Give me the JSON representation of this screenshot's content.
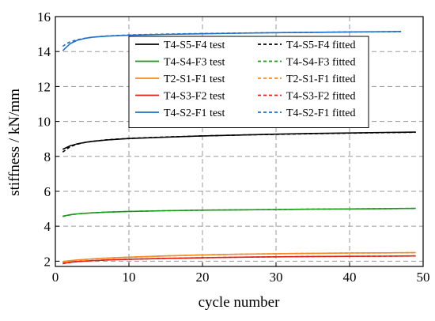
{
  "chart_data": {
    "type": "line",
    "title": "",
    "xlabel": "cycle number",
    "ylabel": "stiffness / kN/mm",
    "xlim": [
      0,
      50
    ],
    "ylim": [
      1.7,
      16
    ],
    "xticks": [
      0,
      10,
      20,
      30,
      40,
      50
    ],
    "yticks": [
      2,
      4,
      6,
      8,
      10,
      12,
      14,
      16
    ],
    "grid": true,
    "grid_style": "dashed",
    "legend_position": "top-right",
    "series": [
      {
        "name": "T4-S5-F4 test",
        "color": "#000000",
        "dash": "solid",
        "x": [
          1,
          2,
          3,
          4,
          5,
          7,
          10,
          15,
          20,
          25,
          30,
          35,
          40,
          45,
          49
        ],
        "y": [
          8.4,
          8.6,
          8.72,
          8.8,
          8.86,
          8.94,
          9.02,
          9.1,
          9.17,
          9.22,
          9.27,
          9.31,
          9.34,
          9.37,
          9.39
        ]
      },
      {
        "name": "T4-S5-F4 fitted",
        "color": "#000000",
        "dash": "dashed",
        "x": [
          1,
          2,
          3,
          4,
          5,
          7,
          10,
          15,
          20,
          25,
          30,
          35,
          40,
          45,
          49
        ],
        "y": [
          8.25,
          8.55,
          8.7,
          8.79,
          8.86,
          8.95,
          9.03,
          9.11,
          9.17,
          9.22,
          9.26,
          9.3,
          9.33,
          9.36,
          9.38
        ]
      },
      {
        "name": "T4-S4-F3 test",
        "color": "#1a9a1a",
        "dash": "solid",
        "x": [
          1,
          2,
          3,
          5,
          7,
          10,
          15,
          20,
          25,
          30,
          35,
          40,
          45,
          49
        ],
        "y": [
          4.58,
          4.66,
          4.71,
          4.77,
          4.81,
          4.85,
          4.89,
          4.92,
          4.94,
          4.96,
          4.98,
          4.99,
          5.01,
          5.02
        ]
      },
      {
        "name": "T4-S4-F3 fitted",
        "color": "#1a9a1a",
        "dash": "dashed",
        "x": [
          1,
          2,
          3,
          5,
          7,
          10,
          15,
          20,
          25,
          30,
          35,
          40,
          45,
          49
        ],
        "y": [
          4.56,
          4.65,
          4.71,
          4.77,
          4.81,
          4.85,
          4.89,
          4.92,
          4.94,
          4.96,
          4.98,
          4.99,
          5.01,
          5.02
        ]
      },
      {
        "name": "T2-S1-F1 test",
        "color": "#f58a1f",
        "dash": "solid",
        "x": [
          1,
          2,
          3,
          5,
          7,
          10,
          15,
          20,
          25,
          30,
          35,
          40,
          45,
          49
        ],
        "y": [
          1.98,
          2.03,
          2.07,
          2.13,
          2.18,
          2.23,
          2.3,
          2.36,
          2.4,
          2.43,
          2.45,
          2.47,
          2.48,
          2.49
        ]
      },
      {
        "name": "T2-S1-F1 fitted",
        "color": "#f58a1f",
        "dash": "dashed",
        "x": [
          1,
          2,
          3,
          5,
          7,
          10,
          15,
          20,
          25,
          30,
          35,
          40,
          45,
          49
        ],
        "y": [
          1.95,
          2.02,
          2.07,
          2.13,
          2.18,
          2.23,
          2.3,
          2.36,
          2.4,
          2.43,
          2.45,
          2.47,
          2.48,
          2.49
        ]
      },
      {
        "name": "T4-S3-F2 test",
        "color": "#e0201b",
        "dash": "solid",
        "x": [
          1,
          2,
          3,
          5,
          7,
          10,
          15,
          20,
          25,
          30,
          35,
          40,
          45,
          49
        ],
        "y": [
          1.88,
          1.94,
          1.98,
          2.03,
          2.07,
          2.11,
          2.16,
          2.2,
          2.23,
          2.25,
          2.27,
          2.28,
          2.29,
          2.3
        ]
      },
      {
        "name": "T4-S3-F2 fitted",
        "color": "#e0201b",
        "dash": "dashed",
        "x": [
          1,
          2,
          3,
          5,
          7,
          10,
          15,
          20,
          25,
          30,
          35,
          40,
          45,
          49
        ],
        "y": [
          1.86,
          1.93,
          1.98,
          2.03,
          2.07,
          2.11,
          2.16,
          2.2,
          2.23,
          2.25,
          2.27,
          2.28,
          2.29,
          2.3
        ]
      },
      {
        "name": "T4-S2-F1 test",
        "color": "#1f6fc4",
        "dash": "solid",
        "x": [
          1,
          1.5,
          2,
          2.5,
          3,
          4,
          5,
          7,
          10,
          15,
          20,
          25,
          30,
          35,
          40,
          45,
          47
        ],
        "y": [
          14.05,
          14.25,
          14.45,
          14.55,
          14.65,
          14.75,
          14.82,
          14.88,
          14.93,
          14.98,
          15.02,
          15.05,
          15.08,
          15.1,
          15.12,
          15.14,
          15.15
        ]
      },
      {
        "name": "T4-S2-F1 fitted",
        "color": "#1f6fc4",
        "dash": "dashed",
        "x": [
          1,
          1.5,
          2,
          2.5,
          3,
          4,
          5,
          7,
          10,
          15,
          20,
          25,
          30,
          35,
          40,
          45,
          47
        ],
        "y": [
          14.3,
          14.45,
          14.55,
          14.62,
          14.68,
          14.76,
          14.82,
          14.89,
          14.95,
          15.0,
          15.03,
          15.06,
          15.08,
          15.1,
          15.12,
          15.13,
          15.14
        ]
      }
    ],
    "legend_rows": [
      [
        "T4-S5-F4 test",
        "T4-S5-F4 fitted"
      ],
      [
        "T4-S4-F3 test",
        "T4-S4-F3 fitted"
      ],
      [
        "T2-S1-F1 test",
        "T2-S1-F1 fitted"
      ],
      [
        "T4-S3-F2 test",
        "T4-S3-F2 fitted"
      ],
      [
        "T4-S2-F1 test",
        "T4-S2-F1 fitted"
      ]
    ]
  }
}
